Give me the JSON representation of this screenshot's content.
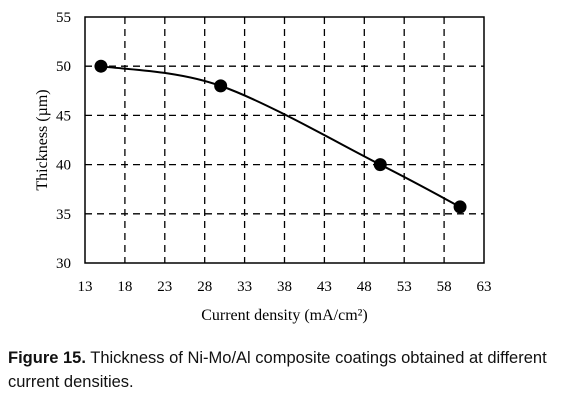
{
  "chart_data": {
    "type": "line",
    "xlabel": "Current density (mA/cm²)",
    "ylabel": "Thickness (µm)",
    "xlim": [
      13,
      63
    ],
    "ylim": [
      30,
      55
    ],
    "x_ticks": [
      13,
      18,
      23,
      28,
      33,
      38,
      43,
      48,
      53,
      58,
      63
    ],
    "y_ticks": [
      30,
      35,
      40,
      45,
      50,
      55
    ],
    "grid": "dashed",
    "series": [
      {
        "x": [
          15,
          30,
          50,
          60
        ],
        "y": [
          50,
          48,
          40,
          35.7
        ],
        "marker": "circle",
        "smooth": true,
        "color": "#000000"
      }
    ]
  },
  "caption": {
    "label": "Figure 15.",
    "text": " Thickness of Ni-Mo/Al composite coatings obtained at different current densities."
  }
}
